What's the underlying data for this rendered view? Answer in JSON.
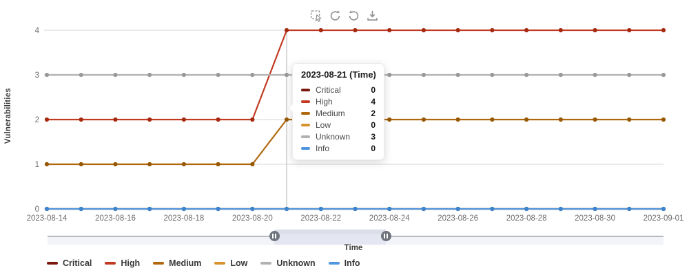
{
  "chart_data": {
    "type": "line",
    "title": "",
    "xlabel": "Time",
    "ylabel": "Vulnerabilities",
    "x": [
      "2023-08-14",
      "2023-08-15",
      "2023-08-16",
      "2023-08-17",
      "2023-08-18",
      "2023-08-19",
      "2023-08-20",
      "2023-08-21",
      "2023-08-22",
      "2023-08-23",
      "2023-08-24",
      "2023-08-25",
      "2023-08-26",
      "2023-08-27",
      "2023-08-28",
      "2023-08-29",
      "2023-08-30",
      "2023-08-31",
      "2023-09-01"
    ],
    "x_label_step": 2,
    "yticks": [
      0,
      1,
      2,
      3,
      4
    ],
    "ylim": [
      0,
      4
    ],
    "grid": true,
    "legend_position": "bottom",
    "series": [
      {
        "name": "Critical",
        "color": "#7a170e",
        "point_color": "#6c120a",
        "values": [
          0,
          0,
          0,
          0,
          0,
          0,
          0,
          0,
          0,
          0,
          0,
          0,
          0,
          0,
          0,
          0,
          0,
          0,
          0
        ]
      },
      {
        "name": "High",
        "color": "#c23a22",
        "point_color": "#a42a0f",
        "values": [
          2,
          2,
          2,
          2,
          2,
          2,
          2,
          4,
          4,
          4,
          4,
          4,
          4,
          4,
          4,
          4,
          4,
          4,
          4
        ]
      },
      {
        "name": "Medium",
        "color": "#b0680f",
        "point_color": "#965802",
        "values": [
          1,
          1,
          1,
          1,
          1,
          1,
          1,
          2,
          2,
          2,
          2,
          2,
          2,
          2,
          2,
          2,
          2,
          2,
          2
        ]
      },
      {
        "name": "Low",
        "color": "#d6932f",
        "point_color": "#c6841e",
        "values": [
          0,
          0,
          0,
          0,
          0,
          0,
          0,
          0,
          0,
          0,
          0,
          0,
          0,
          0,
          0,
          0,
          0,
          0,
          0
        ]
      },
      {
        "name": "Unknown",
        "color": "#b1b1b1",
        "point_color": "#9a9a9a",
        "values": [
          3,
          3,
          3,
          3,
          3,
          3,
          3,
          3,
          3,
          3,
          3,
          3,
          3,
          3,
          3,
          3,
          3,
          3,
          3
        ]
      },
      {
        "name": "Info",
        "color": "#4f96df",
        "point_color": "#3a85d2",
        "values": [
          0,
          0,
          0,
          0,
          0,
          0,
          0,
          0,
          0,
          0,
          0,
          0,
          0,
          0,
          0,
          0,
          0,
          0,
          0
        ]
      }
    ]
  },
  "tooltip": {
    "title": "2023-08-21 (Time)",
    "date": "2023-08-21",
    "rows": [
      {
        "label": "Critical",
        "value": "0",
        "color": "#7a170e"
      },
      {
        "label": "High",
        "value": "4",
        "color": "#c23a22"
      },
      {
        "label": "Medium",
        "value": "2",
        "color": "#b0680f"
      },
      {
        "label": "Low",
        "value": "0",
        "color": "#d6932f"
      },
      {
        "label": "Unknown",
        "value": "3",
        "color": "#b1b1b1"
      },
      {
        "label": "Info",
        "value": "0",
        "color": "#4f96df"
      }
    ]
  },
  "toolbar": {
    "icons": [
      "area-select-zoom",
      "undo-rotate-ccw",
      "restore-rotate-cw",
      "save-as-image"
    ]
  },
  "colors": {
    "gridline": "#d7d7d7",
    "axis_pointer": "#b3b3b3",
    "axis_label": "#6e6e6e",
    "slider_filler": "#e4e7f2",
    "slider_handle": "#70757d"
  }
}
